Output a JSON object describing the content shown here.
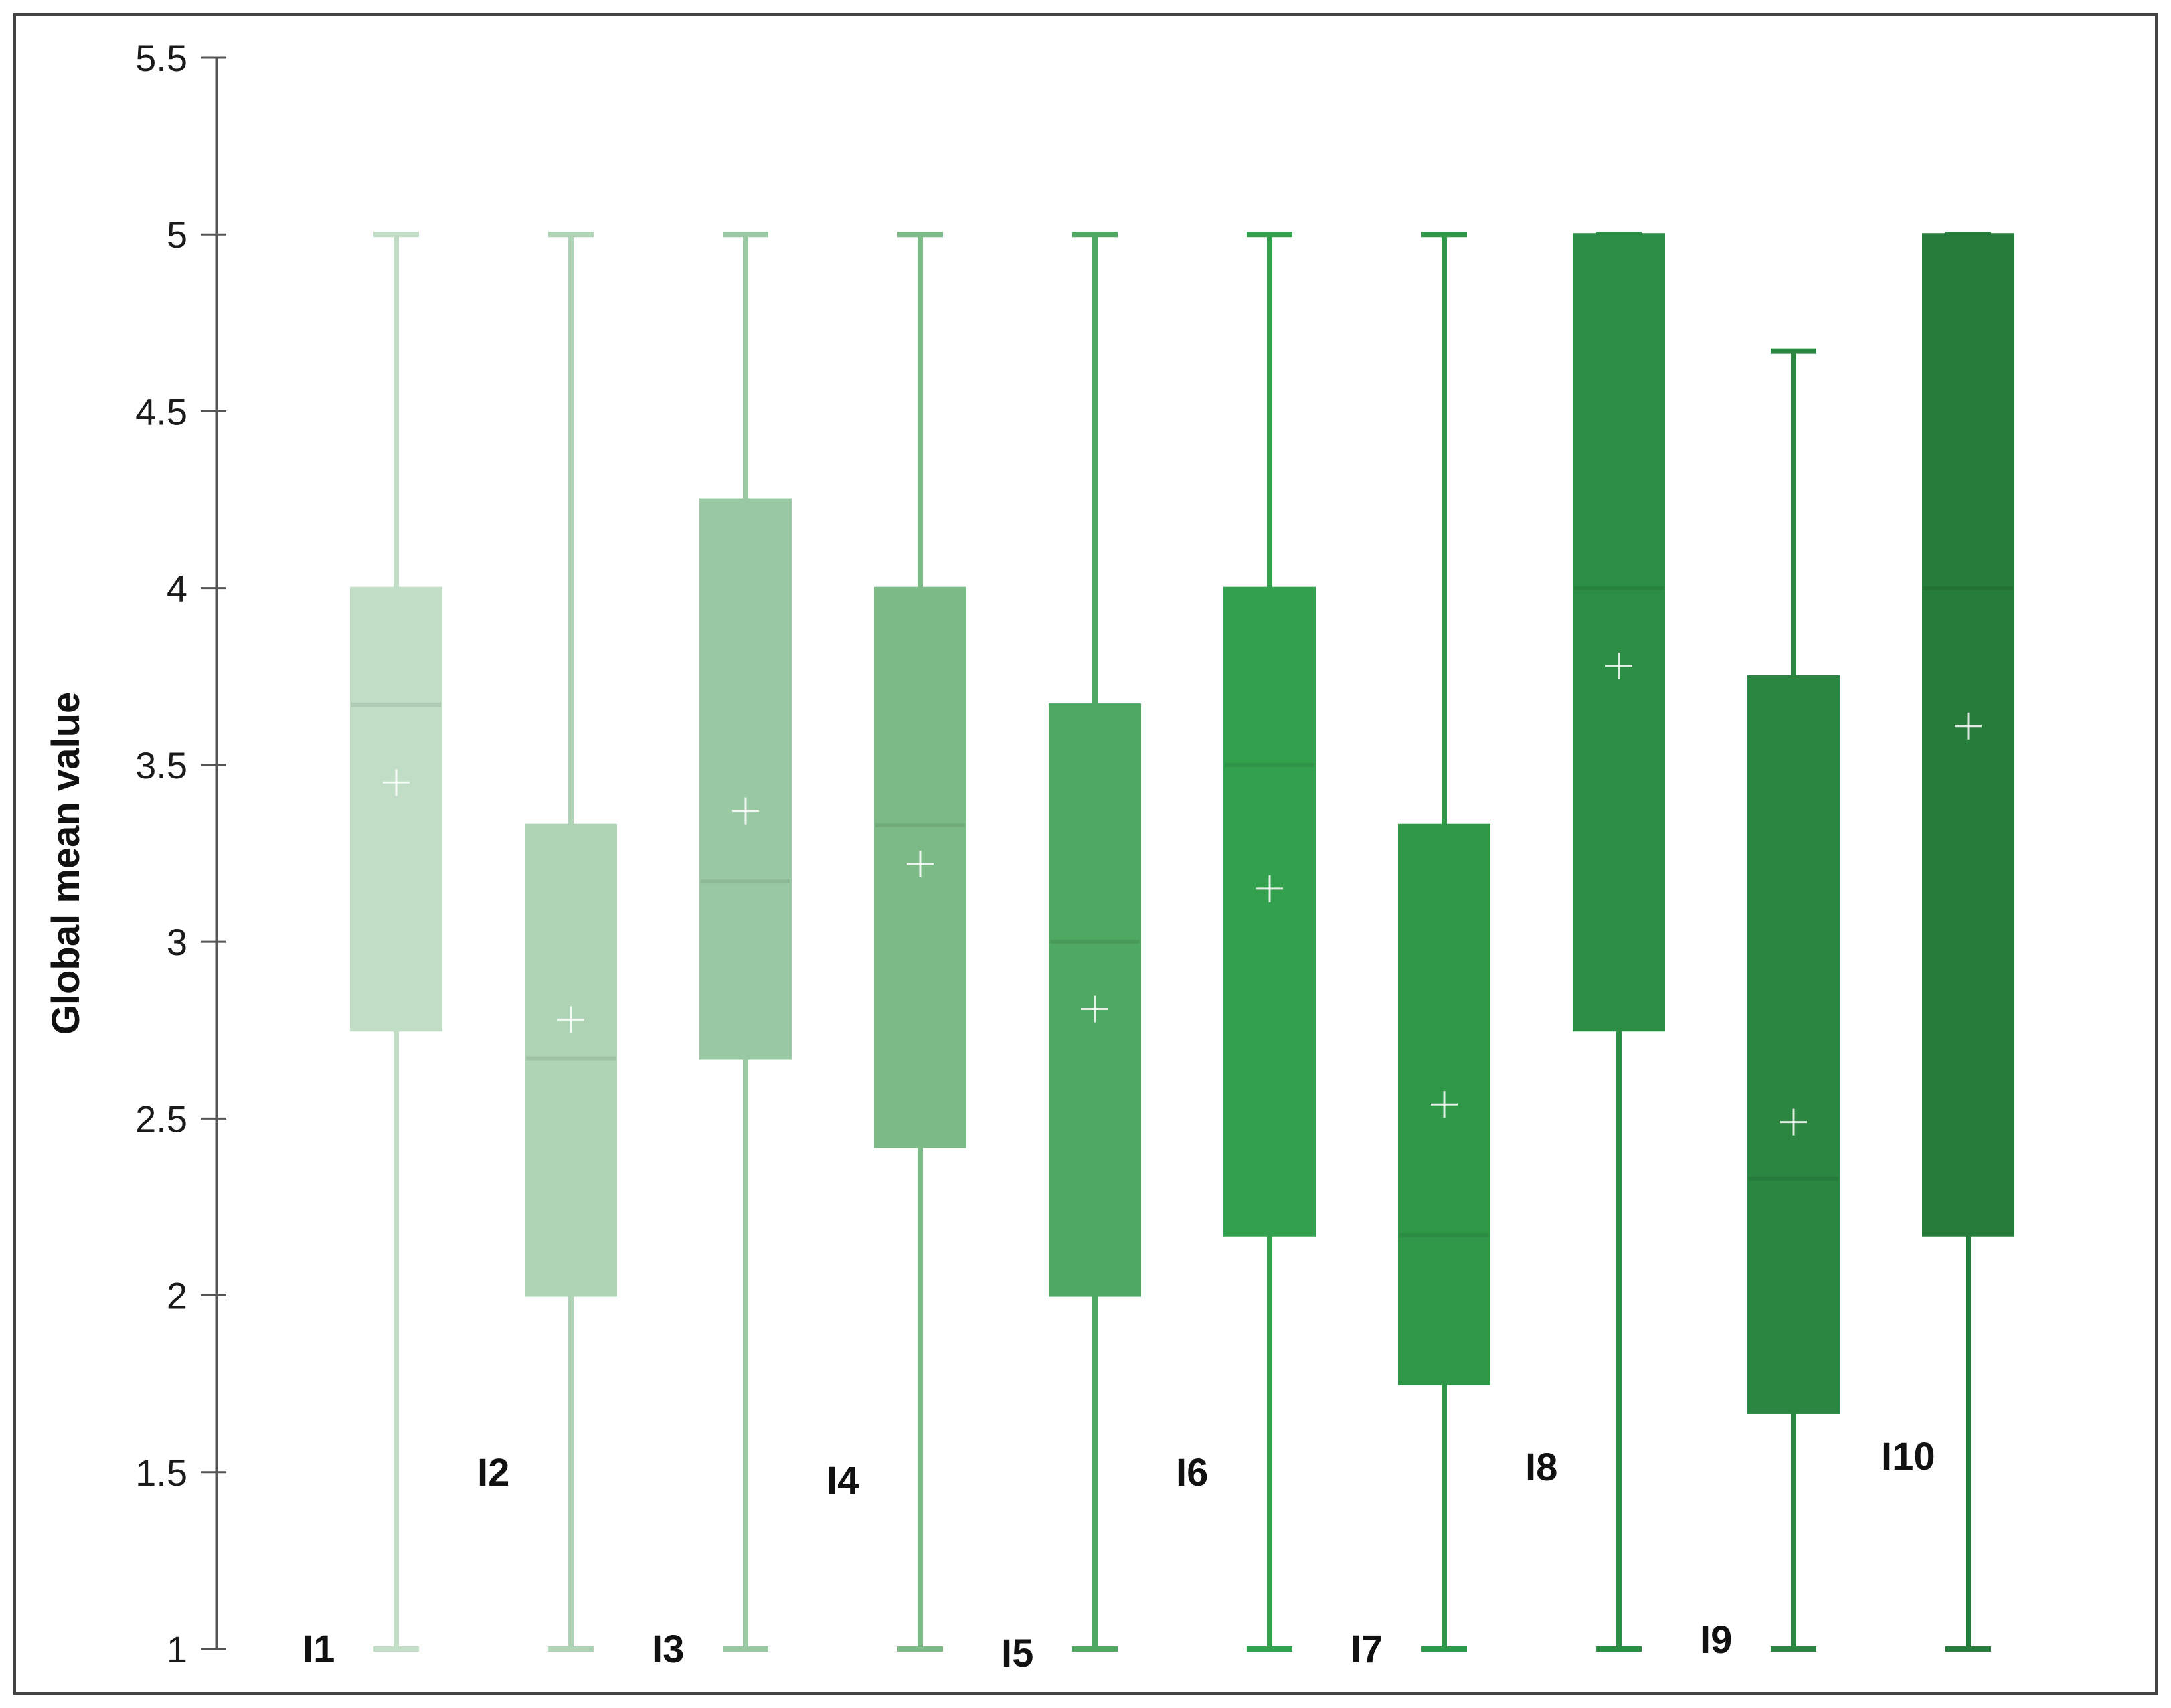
{
  "chart_data": {
    "type": "boxplot",
    "ylabel": "Global mean value",
    "ylim": [
      1,
      5.5
    ],
    "yticks": [
      "1",
      "1.5",
      "2",
      "2.5",
      "3",
      "3.5",
      "4",
      "4.5",
      "5",
      "5.5"
    ],
    "grid": false,
    "series": [
      {
        "name": "I1",
        "min": 1,
        "q1": 2.75,
        "median": 3.67,
        "q3": 4.0,
        "max": 5.0,
        "mean": 3.45,
        "color": "#c1ddc6"
      },
      {
        "name": "I2",
        "min": 1,
        "q1": 2.0,
        "median": 2.67,
        "q3": 3.33,
        "max": 5.0,
        "mean": 2.78,
        "color": "#aed3b5"
      },
      {
        "name": "I3",
        "min": 1,
        "q1": 2.67,
        "median": 3.17,
        "q3": 4.25,
        "max": 5.0,
        "mean": 3.37,
        "color": "#99c9a2"
      },
      {
        "name": "I4",
        "min": 1,
        "q1": 2.42,
        "median": 3.33,
        "q3": 4.0,
        "max": 5.0,
        "mean": 3.22,
        "color": "#7cbb88"
      },
      {
        "name": "I5",
        "min": 1,
        "q1": 2.0,
        "median": 3.0,
        "q3": 3.67,
        "max": 5.0,
        "mean": 2.81,
        "color": "#4fa963"
      },
      {
        "name": "I6",
        "min": 1,
        "q1": 2.17,
        "median": 3.5,
        "q3": 4.0,
        "max": 5.0,
        "mean": 3.15,
        "color": "#33a04e"
      },
      {
        "name": "I7",
        "min": 1,
        "q1": 1.75,
        "median": 2.17,
        "q3": 3.33,
        "max": 5.0,
        "mean": 2.54,
        "color": "#2e9748"
      },
      {
        "name": "I8",
        "min": 1,
        "q1": 2.75,
        "median": 4.0,
        "q3": 5.0,
        "max": 5.0,
        "mean": 3.78,
        "color": "#2c8e45"
      },
      {
        "name": "I9",
        "min": 1,
        "q1": 1.67,
        "median": 2.33,
        "q3": 3.75,
        "max": 4.67,
        "mean": 2.49,
        "color": "#2a8641"
      },
      {
        "name": "I10",
        "min": 1,
        "q1": 2.17,
        "median": 4.0,
        "q3": 5.0,
        "max": 5.0,
        "mean": 3.61,
        "color": "#257c3b"
      }
    ],
    "label_positions": [
      "bottom",
      "mid",
      "bottom",
      "mid",
      "bottom",
      "mid",
      "bottom",
      "mid",
      "bottom",
      "mid"
    ],
    "frame_color": "#444444"
  }
}
